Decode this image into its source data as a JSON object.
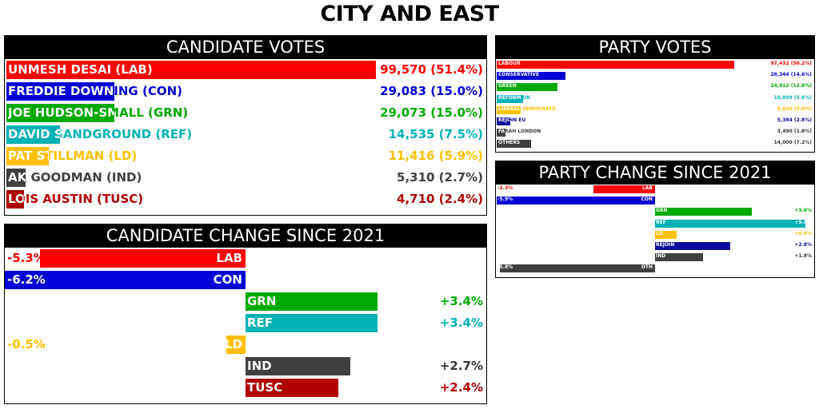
{
  "page": {
    "title": "CITY AND EAST"
  },
  "colors": {
    "LAB": "#ff0000",
    "CON": "#0000d6",
    "GRN": "#00aa00",
    "REF": "#00b2b4",
    "LD": "#ffc000",
    "IND": "#404040",
    "TUSC": "#b00000",
    "REJOIN": "#0a0a9c",
    "OTH": "#404040",
    "LAB_DARK_TEXT": "#e00000"
  },
  "chart_data": [
    {
      "id": "candidate_votes",
      "type": "bar",
      "title": "CANDIDATE VOTES",
      "items": [
        {
          "label": "UNMESH DESAI (LAB)",
          "party": "LAB",
          "votes": 99570,
          "display": "99,570 (51.4%)",
          "share": 51.4
        },
        {
          "label": "FREDDIE DOWNING (CON)",
          "party": "CON",
          "votes": 29083,
          "display": "29,083 (15.0%)",
          "share": 15.0
        },
        {
          "label": "JOE HUDSON-SMALL (GRN)",
          "party": "GRN",
          "votes": 29073,
          "display": "29,073 (15.0%)",
          "share": 15.0
        },
        {
          "label": "DAVID SANDGROUND (REF)",
          "party": "REF",
          "votes": 14535,
          "display": "14,535 (7.5%)",
          "share": 7.5
        },
        {
          "label": "PAT STILLMAN (LD)",
          "party": "LD",
          "votes": 11416,
          "display": "11,416 (5.9%)",
          "share": 5.9
        },
        {
          "label": "AK GOODMAN (IND)",
          "party": "IND",
          "votes": 5310,
          "display": "5,310 (2.7%)",
          "share": 2.7
        },
        {
          "label": "LOIS AUSTIN (TUSC)",
          "party": "TUSC",
          "votes": 4710,
          "display": "4,710 (2.4%)",
          "share": 2.4
        }
      ]
    },
    {
      "id": "candidate_change",
      "type": "bar",
      "title": "CANDIDATE CHANGE SINCE 2021",
      "xlim": [
        -8,
        8
      ],
      "items": [
        {
          "label": "LAB",
          "party": "LAB",
          "value": -5.3,
          "display": "-5.3%"
        },
        {
          "label": "CON",
          "party": "CON",
          "value": -6.2,
          "display": "-6.2%"
        },
        {
          "label": "GRN",
          "party": "GRN",
          "value": 3.4,
          "display": "+3.4%"
        },
        {
          "label": "REF",
          "party": "REF",
          "value": 3.4,
          "display": "+3.4%"
        },
        {
          "label": "LD",
          "party": "LD",
          "value": -0.5,
          "display": "-0.5%"
        },
        {
          "label": "IND",
          "party": "IND",
          "value": 2.7,
          "display": "+2.7%"
        },
        {
          "label": "TUSC",
          "party": "TUSC",
          "value": 2.4,
          "display": "+2.4%"
        }
      ]
    },
    {
      "id": "party_votes",
      "type": "bar",
      "title": "PARTY VOTES",
      "items": [
        {
          "label": "LABOUR",
          "party": "LAB",
          "votes": 97432,
          "display": "97,432 (50.2%)",
          "share": 50.2
        },
        {
          "label": "CONSERVATIVE",
          "party": "CON",
          "votes": 28344,
          "display": "28,344 (14.6%)",
          "share": 14.6
        },
        {
          "label": "GREEN",
          "party": "GRN",
          "votes": 24912,
          "display": "24,912 (12.8%)",
          "share": 12.8
        },
        {
          "label": "REFORM UK",
          "party": "REF",
          "votes": 10899,
          "display": "10,899 (5.6%)",
          "share": 5.6
        },
        {
          "label": "LIBERAL DEMOCRATS",
          "party": "LD",
          "votes": 9620,
          "display": "9,620 (5.0%)",
          "share": 5.0
        },
        {
          "label": "REJOIN EU",
          "party": "REJOIN",
          "votes": 5384,
          "display": "5,384 (2.8%)",
          "share": 2.8
        },
        {
          "label": "FARAH LONDON",
          "party": "IND",
          "votes": 3490,
          "display": "3,490 (1.8%)",
          "share": 1.8
        },
        {
          "label": "OTHERS",
          "party": "OTH",
          "votes": 14000,
          "display": "14,000 (7.2%)",
          "share": 7.2
        }
      ]
    },
    {
      "id": "party_change",
      "type": "bar",
      "title": "PARTY CHANGE SINCE 2021",
      "xlim": [
        -8,
        8
      ],
      "items": [
        {
          "label": "LAB",
          "party": "LAB",
          "value": -2.3,
          "display": "-2.3%"
        },
        {
          "label": "CON",
          "party": "CON",
          "value": -5.9,
          "display": "-5.9%"
        },
        {
          "label": "GRN",
          "party": "GRN",
          "value": 3.6,
          "display": "+3.6%"
        },
        {
          "label": "REF",
          "party": "REF",
          "value": 5.6,
          "display": "+5.6%"
        },
        {
          "label": "LD",
          "party": "LD",
          "value": 0.8,
          "display": "+0.8%"
        },
        {
          "label": "REJOIN",
          "party": "REJOIN",
          "value": 2.8,
          "display": "+2.8%"
        },
        {
          "label": "IND",
          "party": "IND",
          "value": 1.8,
          "display": "+1.8%"
        },
        {
          "label": "OTH",
          "party": "OTH",
          "value": -5.8,
          "display": "-5.8%"
        }
      ]
    }
  ]
}
